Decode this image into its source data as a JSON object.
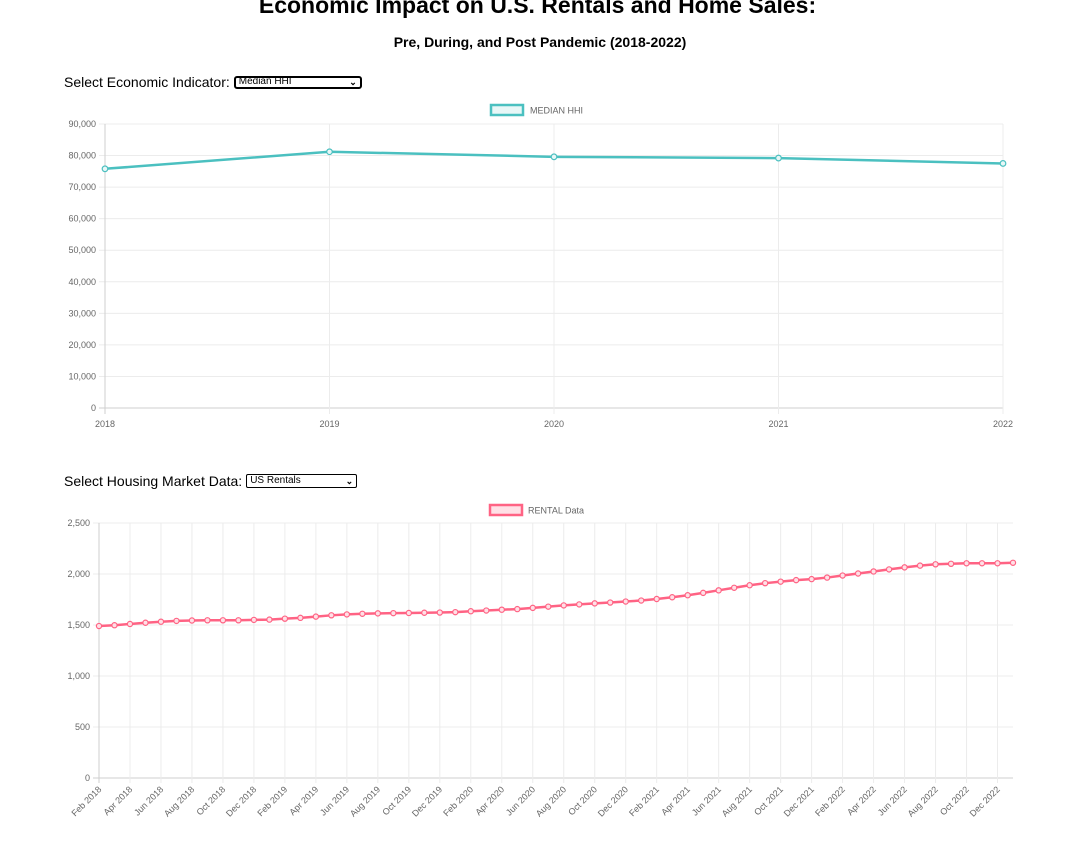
{
  "page": {
    "title": "Economic Impact on U.S. Rentals and Home Sales:",
    "subtitle": "Pre, During, and Post Pandemic (2018-2022)"
  },
  "controls": {
    "economic": {
      "label": "Select Economic Indicator:",
      "value": "Median HHI"
    },
    "housing": {
      "label": "Select Housing Market Data:",
      "value": "US Rentals"
    }
  },
  "chart_data": [
    {
      "type": "line",
      "legend": "MEDIAN HHI",
      "legend_position": "top-center",
      "color": "#4bc0c0",
      "fill": "#e8f7f7",
      "x": [
        "2018",
        "2019",
        "2020",
        "2021",
        "2022"
      ],
      "values": [
        75800,
        81200,
        79600,
        79200,
        77500
      ],
      "ylim": [
        0,
        90000
      ],
      "yticks": [
        0,
        10000,
        20000,
        30000,
        40000,
        50000,
        60000,
        70000,
        80000,
        90000
      ],
      "ytick_labels": [
        "0",
        "10,000",
        "20,000",
        "30,000",
        "40,000",
        "50,000",
        "60,000",
        "70,000",
        "80,000",
        "90,000"
      ],
      "grid": true
    },
    {
      "type": "line",
      "legend": "RENTAL Data",
      "legend_position": "top-center",
      "color": "#ff6384",
      "fill": "#ffe0e6",
      "x_labels": [
        "Feb 2018",
        "Apr 2018",
        "Jun 2018",
        "Aug 2018",
        "Oct 2018",
        "Dec 2018",
        "Feb 2019",
        "Apr 2019",
        "Jun 2019",
        "Aug 2019",
        "Oct 2019",
        "Dec 2019",
        "Feb 2020",
        "Apr 2020",
        "Jun 2020",
        "Aug 2020",
        "Oct 2020",
        "Dec 2020",
        "Feb 2021",
        "Apr 2021",
        "Jun 2021",
        "Aug 2021",
        "Oct 2021",
        "Dec 2021",
        "Feb 2022",
        "Apr 2022",
        "Jun 2022",
        "Aug 2022",
        "Oct 2022",
        "Dec 2022"
      ],
      "values": [
        1490,
        1498,
        1510,
        1522,
        1532,
        1540,
        1544,
        1546,
        1546,
        1546,
        1550,
        1553,
        1562,
        1570,
        1582,
        1595,
        1604,
        1610,
        1614,
        1616,
        1618,
        1620,
        1622,
        1626,
        1635,
        1642,
        1650,
        1656,
        1668,
        1680,
        1692,
        1702,
        1712,
        1720,
        1730,
        1740,
        1755,
        1772,
        1792,
        1815,
        1840,
        1865,
        1890,
        1910,
        1925,
        1940,
        1950,
        1965,
        1985,
        2005,
        2025,
        2045,
        2065,
        2082,
        2095,
        2100,
        2105,
        2105,
        2105,
        2110
      ],
      "ylim": [
        0,
        2500
      ],
      "yticks": [
        0,
        500,
        1000,
        1500,
        2000,
        2500
      ],
      "ytick_labels": [
        "0",
        "500",
        "1,000",
        "1,500",
        "2,000",
        "2,500"
      ],
      "grid": true
    }
  ]
}
